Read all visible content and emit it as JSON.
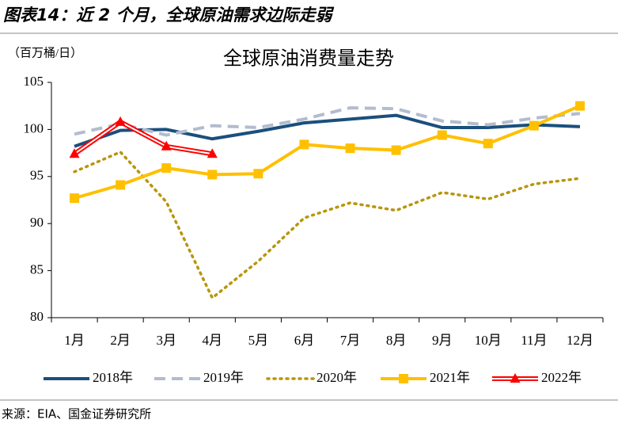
{
  "header": {
    "title": "图表14：近 2 个月，全球原油需求边际走弱"
  },
  "source": "来源：EIA、国金证券研究所",
  "chart_data": {
    "type": "line",
    "title": "全球原油消费量走势",
    "y_label": "（百万桶/日）",
    "categories": [
      "1月",
      "2月",
      "3月",
      "4月",
      "5月",
      "6月",
      "7月",
      "8月",
      "9月",
      "10月",
      "11月",
      "12月"
    ],
    "series": [
      {
        "name": "2018年",
        "color": "#1b4f7c",
        "style": "solid",
        "marker": null,
        "values": [
          98.2,
          99.9,
          100.0,
          99.0,
          99.8,
          100.7,
          101.1,
          101.5,
          100.2,
          100.2,
          100.5,
          100.3
        ]
      },
      {
        "name": "2019年",
        "color": "#b3bcce",
        "style": "dashed",
        "marker": null,
        "values": [
          99.5,
          100.6,
          99.4,
          100.4,
          100.2,
          101.1,
          102.3,
          102.2,
          100.9,
          100.5,
          101.2,
          101.7
        ]
      },
      {
        "name": "2020年",
        "color": "#b8960c",
        "style": "dotted",
        "marker": null,
        "values": [
          95.5,
          97.6,
          92.3,
          82.1,
          86.0,
          90.6,
          92.2,
          91.4,
          93.3,
          92.6,
          94.2,
          94.8
        ]
      },
      {
        "name": "2021年",
        "color": "#ffc000",
        "style": "solid",
        "marker": "square",
        "values": [
          92.7,
          94.1,
          95.9,
          95.2,
          95.3,
          98.4,
          98.0,
          97.8,
          99.4,
          98.5,
          100.4,
          102.5
        ]
      },
      {
        "name": "2022年",
        "color": "#ff0000",
        "style": "double",
        "marker": "triangle",
        "values": [
          97.4,
          100.8,
          98.2,
          97.4,
          null,
          null,
          null,
          null,
          null,
          null,
          null,
          null
        ]
      }
    ],
    "ylim": [
      80,
      105
    ],
    "yticks": [
      80,
      85,
      90,
      95,
      100,
      105
    ],
    "grid": false,
    "legend": "bottom"
  }
}
